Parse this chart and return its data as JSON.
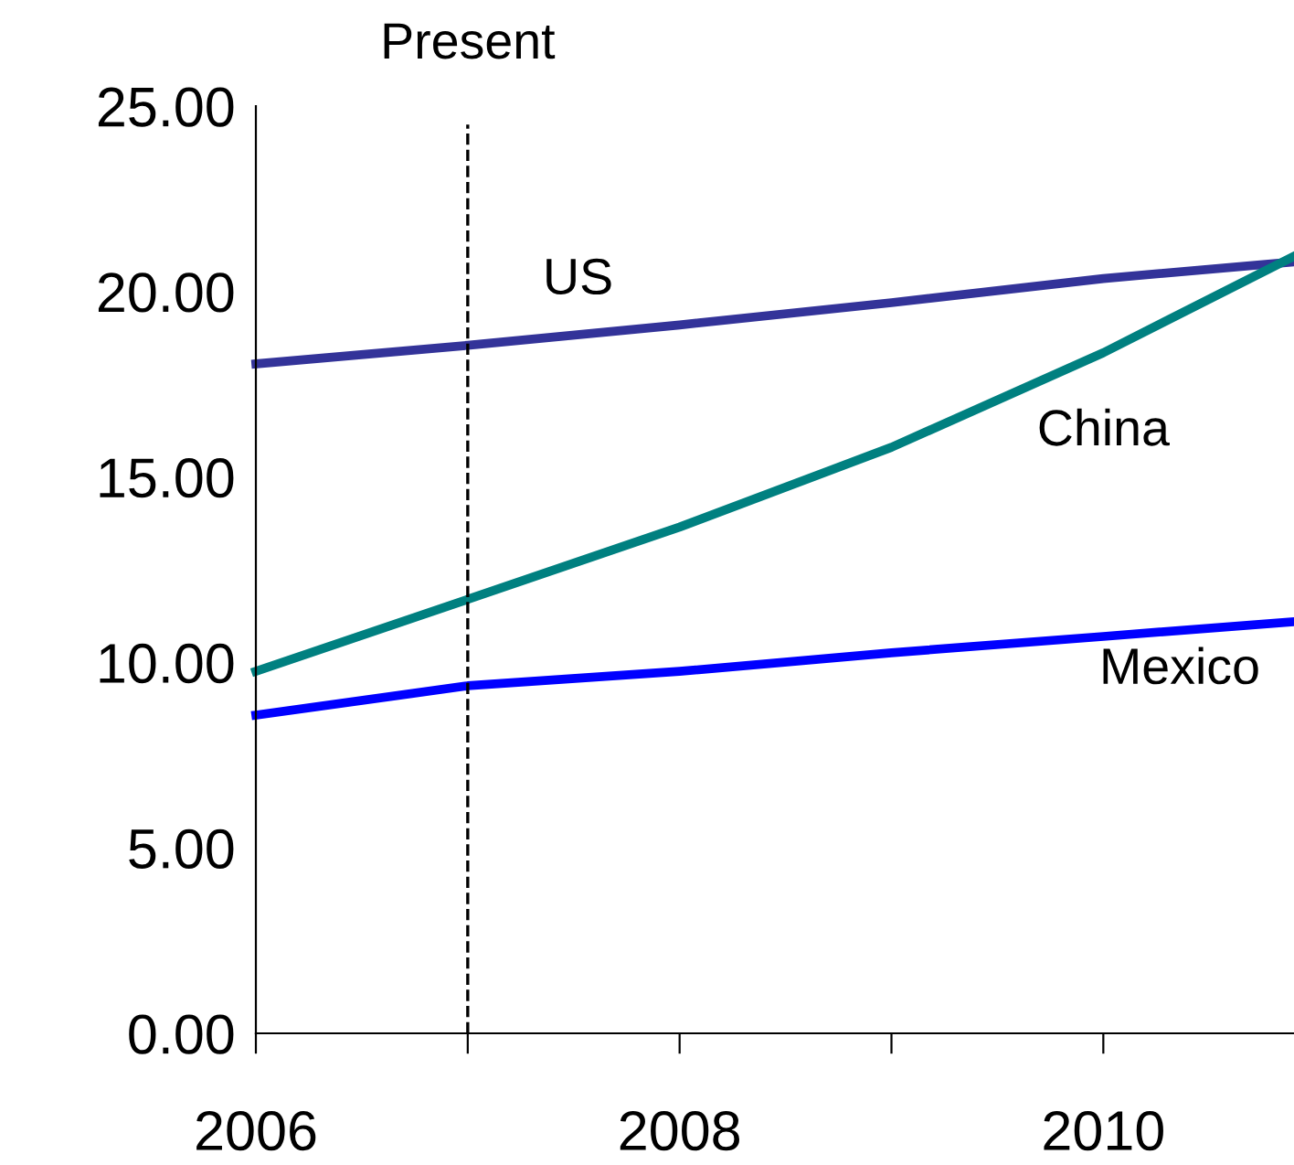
{
  "chart_data": {
    "type": "line",
    "x": [
      2006,
      2007,
      2008,
      2009,
      2010,
      2010.9
    ],
    "series": [
      {
        "name": "US",
        "color": "#333399",
        "values": [
          18.05,
          18.55,
          19.1,
          19.7,
          20.35,
          20.8
        ]
      },
      {
        "name": "China",
        "color": "#008080",
        "values": [
          9.76,
          11.7,
          13.65,
          15.8,
          18.35,
          20.95
        ]
      },
      {
        "name": "Mexico",
        "color": "#0000ff",
        "values": [
          8.58,
          9.37,
          9.76,
          10.26,
          10.7,
          11.1
        ]
      }
    ],
    "xlim": [
      2006,
      2010.9
    ],
    "xticks": [
      2006,
      {
        "value": 2007,
        "label": null
      },
      2008,
      {
        "value": 2009,
        "label": null
      },
      2010
    ],
    "ylim": [
      0,
      25
    ],
    "yticks": [
      {
        "value": 0,
        "label": "0.00"
      },
      {
        "value": 5,
        "label": "5.00"
      },
      {
        "value": 10,
        "label": "10.00"
      },
      {
        "value": 15,
        "label": "15.00"
      },
      {
        "value": 20,
        "label": "20.00"
      },
      {
        "value": 25,
        "label": "25.00"
      }
    ],
    "ref_lines": [
      {
        "axis": "x",
        "value": 2007,
        "label": "Present",
        "color": "#000000",
        "line_style": "dashed"
      }
    ],
    "grid": false,
    "legend": false,
    "marker": "none",
    "line_style": "solid"
  }
}
